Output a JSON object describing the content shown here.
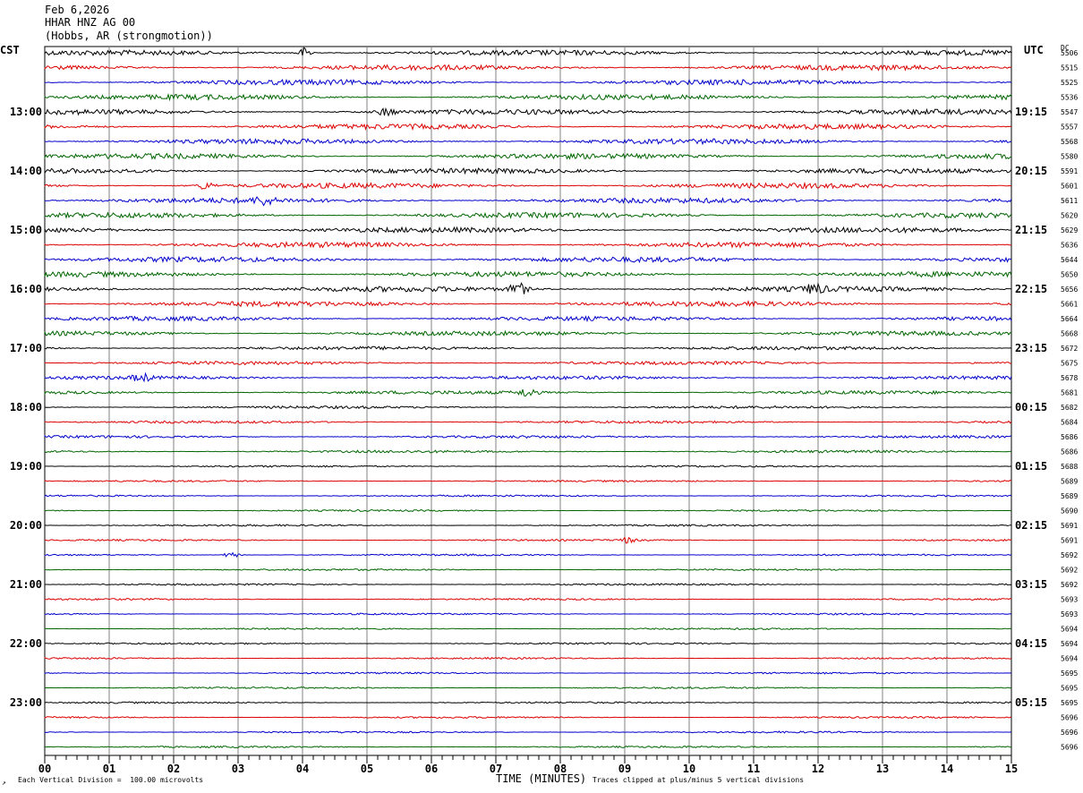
{
  "header": {
    "date": "Feb 6,2026",
    "station": "HHAR HNZ AG 00",
    "location": "(Hobbs, AR (strongmotion))"
  },
  "labels": {
    "left_zone": "CST",
    "right_zone": "UTC",
    "dc": "DC"
  },
  "footer": {
    "scale": "Each Vertical Division =  100.00 microvolts",
    "xlabel": "TIME (MINUTES)",
    "clip_note": "Traces clipped at plus/minus 5 vertical divisions",
    "mark": "↗"
  },
  "colors": {
    "trace_cycle": [
      "#000000",
      "#dd0000",
      "#0000cc",
      "#006600"
    ],
    "grid": "#808080"
  },
  "chart_data": {
    "type": "line",
    "subtype": "helicorder",
    "xlabel": "TIME (MINUTES)",
    "xlim": [
      0,
      15
    ],
    "x_ticks": [
      "00",
      "01",
      "02",
      "03",
      "04",
      "05",
      "06",
      "07",
      "08",
      "09",
      "10",
      "11",
      "12",
      "13",
      "14",
      "15"
    ],
    "rows_per_hour": 4,
    "left_time_labels": [
      "13:00",
      "14:00",
      "15:00",
      "16:00",
      "17:00",
      "18:00",
      "19:00",
      "20:00",
      "21:00",
      "22:00",
      "23:00"
    ],
    "right_time_labels": [
      "19:15",
      "20:15",
      "21:15",
      "22:15",
      "23:15",
      "00:15",
      "01:15",
      "02:15",
      "03:15",
      "04:15",
      "05:15"
    ],
    "hour_label_rows": [
      4,
      8,
      12,
      16,
      20,
      24,
      28,
      32,
      36,
      40,
      44
    ],
    "dc_values": [
      "5506",
      "5515",
      "5525",
      "5536",
      "5547",
      "5557",
      "5568",
      "5580",
      "5591",
      "5601",
      "5611",
      "5620",
      "5629",
      "5636",
      "5644",
      "5650",
      "5656",
      "5661",
      "5664",
      "5668",
      "5672",
      "5675",
      "5678",
      "5681",
      "5682",
      "5684",
      "5686",
      "5686",
      "5688",
      "5689",
      "5689",
      "5690",
      "5691",
      "5691",
      "5692",
      "5692",
      "5692",
      "5693",
      "5693",
      "5694",
      "5694",
      "5694",
      "5695",
      "5695",
      "5695",
      "5696",
      "5696",
      "5696"
    ],
    "row_amplitude": [
      3,
      3,
      3,
      3,
      3,
      3,
      3,
      3,
      3,
      3,
      3,
      3,
      3,
      3,
      3,
      3,
      3,
      3,
      2.5,
      2.5,
      2,
      2,
      2,
      2,
      1.5,
      1.5,
      1.5,
      1.5,
      1,
      1,
      1,
      1,
      1,
      1,
      1,
      1,
      1,
      1,
      1,
      1,
      1,
      1,
      1,
      1,
      1,
      1,
      1,
      1
    ],
    "events": [
      {
        "row": 0,
        "minute": 4.05,
        "amp": 6
      },
      {
        "row": 4,
        "minute": 5.3,
        "amp": 4
      },
      {
        "row": 9,
        "minute": 2.5,
        "amp": 4
      },
      {
        "row": 10,
        "minute": 3.4,
        "amp": 4
      },
      {
        "row": 16,
        "minute": 7.35,
        "amp": 7
      },
      {
        "row": 16,
        "minute": 11.95,
        "amp": 5
      },
      {
        "row": 22,
        "minute": 1.5,
        "amp": 4
      },
      {
        "row": 23,
        "minute": 7.5,
        "amp": 5
      },
      {
        "row": 33,
        "minute": 9.05,
        "amp": 3
      },
      {
        "row": 34,
        "minute": 2.9,
        "amp": 3
      }
    ]
  }
}
